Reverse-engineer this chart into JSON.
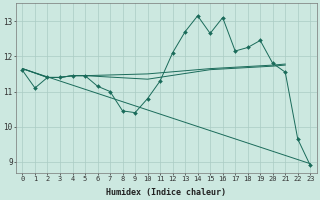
{
  "xlabel": "Humidex (Indice chaleur)",
  "background_color": "#cce8e0",
  "grid_color": "#aaccc4",
  "line_color": "#1a6b5a",
  "xlim": [
    -0.5,
    23.5
  ],
  "ylim": [
    8.7,
    13.5
  ],
  "yticks": [
    9,
    10,
    11,
    12,
    13
  ],
  "xticks": [
    0,
    1,
    2,
    3,
    4,
    5,
    6,
    7,
    8,
    9,
    10,
    11,
    12,
    13,
    14,
    15,
    16,
    17,
    18,
    19,
    20,
    21,
    22,
    23
  ],
  "series": [
    {
      "x": [
        0,
        1,
        2,
        3,
        4,
        5,
        6,
        7,
        8,
        9,
        10,
        11,
        12,
        13,
        14,
        15,
        16,
        17,
        18,
        19,
        20,
        21,
        22,
        23
      ],
      "y": [
        11.6,
        11.1,
        11.4,
        11.4,
        11.45,
        11.45,
        11.15,
        11.0,
        10.45,
        10.4,
        10.8,
        11.3,
        12.1,
        12.7,
        13.15,
        12.65,
        13.1,
        12.15,
        12.25,
        12.45,
        11.8,
        11.55,
        9.65,
        8.9
      ],
      "marker": true
    },
    {
      "x": [
        0,
        2,
        3,
        4,
        5,
        10,
        15,
        20,
        21
      ],
      "y": [
        11.65,
        11.4,
        11.4,
        11.45,
        11.45,
        11.5,
        11.65,
        11.75,
        11.78
      ],
      "marker": false
    },
    {
      "x": [
        0,
        2,
        3,
        4,
        5,
        10,
        15,
        20,
        21
      ],
      "y": [
        11.65,
        11.4,
        11.4,
        11.45,
        11.45,
        11.35,
        11.62,
        11.72,
        11.75
      ],
      "marker": false
    },
    {
      "x": [
        0,
        23
      ],
      "y": [
        11.65,
        8.95
      ],
      "marker": false
    }
  ]
}
